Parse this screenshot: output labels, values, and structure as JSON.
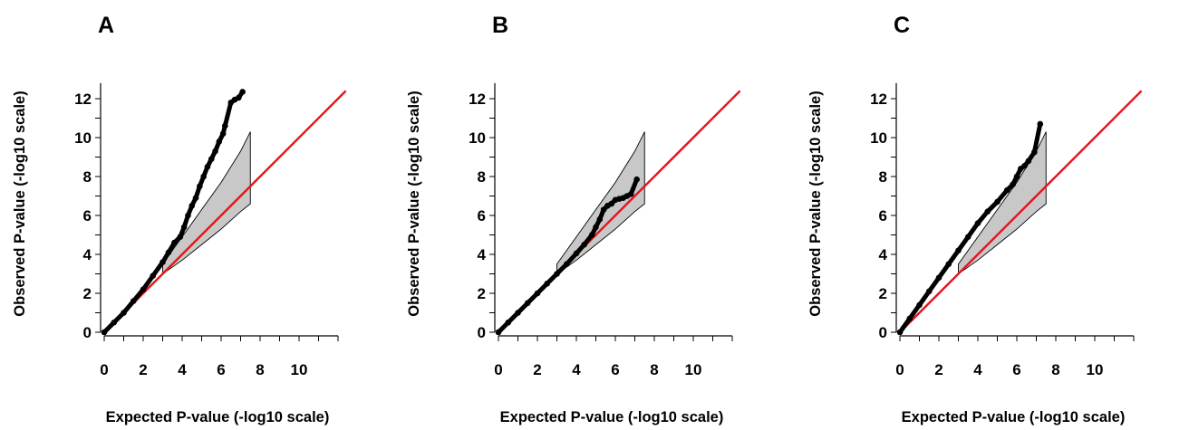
{
  "figure": {
    "panels": [
      "A",
      "B",
      "C"
    ]
  },
  "chart_data": [
    {
      "type": "scatter",
      "panel": "A",
      "xlabel": "Expected P-value (-log10 scale)",
      "ylabel": "Observed P-value (-log10 scale)",
      "xlim": [
        0,
        12.4
      ],
      "ylim": [
        0,
        12.4
      ],
      "xticks": [
        0,
        2,
        4,
        6,
        8,
        10
      ],
      "yticks": [
        0,
        2,
        4,
        6,
        8,
        10,
        12
      ],
      "reference_line": {
        "slope": 1,
        "intercept": 0,
        "color": "#e8141c"
      },
      "confidence_band": {
        "x": [
          3.0,
          4.0,
          5.0,
          6.0,
          7.0,
          7.5
        ],
        "upper": [
          3.5,
          4.9,
          6.3,
          7.7,
          9.3,
          10.3
        ],
        "lower": [
          3.0,
          3.7,
          4.5,
          5.3,
          6.2,
          6.6
        ],
        "fill": "#c8c8c8"
      },
      "points": {
        "x": [
          0.0,
          0.5,
          1.0,
          1.5,
          2.0,
          2.5,
          3.0,
          3.3,
          3.6,
          3.9,
          4.1,
          4.3,
          4.5,
          4.7,
          4.9,
          5.1,
          5.3,
          5.5,
          5.7,
          5.9,
          6.1,
          6.2,
          6.5,
          6.7,
          6.9,
          7.1
        ],
        "y": [
          0.0,
          0.5,
          1.0,
          1.6,
          2.2,
          2.9,
          3.6,
          4.1,
          4.6,
          4.9,
          5.4,
          6.0,
          6.5,
          6.9,
          7.5,
          8.0,
          8.5,
          8.9,
          9.3,
          9.8,
          10.2,
          10.6,
          11.8,
          11.95,
          12.05,
          12.35
        ],
        "color": "#000000"
      }
    },
    {
      "type": "scatter",
      "panel": "B",
      "xlabel": "Expected P-value (-log10 scale)",
      "ylabel": "Observed P-value (-log10 scale)",
      "xlim": [
        0,
        12.4
      ],
      "ylim": [
        0,
        12.4
      ],
      "xticks": [
        0,
        2,
        4,
        6,
        8,
        10
      ],
      "yticks": [
        0,
        2,
        4,
        6,
        8,
        10,
        12
      ],
      "reference_line": {
        "slope": 1,
        "intercept": 0,
        "color": "#e8141c"
      },
      "confidence_band": {
        "x": [
          3.0,
          4.0,
          5.0,
          6.0,
          7.0,
          7.5
        ],
        "upper": [
          3.5,
          4.9,
          6.3,
          7.7,
          9.3,
          10.3
        ],
        "lower": [
          3.0,
          3.7,
          4.5,
          5.3,
          6.2,
          6.6
        ],
        "fill": "#c8c8c8"
      },
      "points": {
        "x": [
          0.0,
          0.5,
          1.0,
          1.5,
          2.0,
          2.5,
          3.0,
          3.5,
          4.0,
          4.4,
          4.8,
          5.0,
          5.2,
          5.4,
          5.6,
          5.8,
          6.0,
          6.2,
          6.4,
          6.6,
          6.8,
          7.1
        ],
        "y": [
          0.0,
          0.5,
          1.0,
          1.5,
          2.0,
          2.5,
          3.0,
          3.5,
          4.05,
          4.5,
          5.0,
          5.4,
          5.8,
          6.3,
          6.5,
          6.6,
          6.8,
          6.85,
          6.9,
          7.0,
          7.1,
          7.85
        ],
        "color": "#000000"
      }
    },
    {
      "type": "scatter",
      "panel": "C",
      "xlabel": "Expected P-value (-log10 scale)",
      "ylabel": "Observed P-value (-log10 scale)",
      "xlim": [
        0,
        12.4
      ],
      "ylim": [
        0,
        12.4
      ],
      "xticks": [
        0,
        2,
        4,
        6,
        8,
        10
      ],
      "yticks": [
        0,
        2,
        4,
        6,
        8,
        10,
        12
      ],
      "reference_line": {
        "slope": 1,
        "intercept": 0,
        "color": "#e8141c"
      },
      "confidence_band": {
        "x": [
          3.0,
          4.0,
          5.0,
          6.0,
          7.0,
          7.5
        ],
        "upper": [
          3.5,
          4.9,
          6.3,
          7.7,
          9.3,
          10.3
        ],
        "lower": [
          3.0,
          3.7,
          4.5,
          5.3,
          6.2,
          6.6
        ],
        "fill": "#c8c8c8"
      },
      "points": {
        "x": [
          0.0,
          0.5,
          1.0,
          1.5,
          2.0,
          2.5,
          3.0,
          3.5,
          4.0,
          4.5,
          5.0,
          5.5,
          5.8,
          6.0,
          6.2,
          6.4,
          6.6,
          6.9,
          7.2
        ],
        "y": [
          0.0,
          0.7,
          1.4,
          2.1,
          2.8,
          3.5,
          4.2,
          4.9,
          5.6,
          6.2,
          6.7,
          7.3,
          7.6,
          8.0,
          8.4,
          8.55,
          8.8,
          9.25,
          10.7
        ],
        "color": "#000000"
      }
    }
  ]
}
